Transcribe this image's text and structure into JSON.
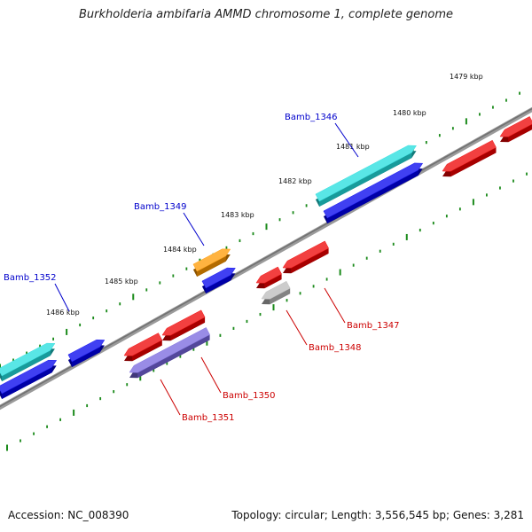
{
  "title": "Burkholderia ambifaria AMMD chromosome 1, complete genome",
  "footer": {
    "accession": "Accession: NC_008390",
    "summary": "Topology: circular; Length: 3,556,545 bp; Genes: 3,281"
  },
  "colors": {
    "backbone": "#8a8a8a",
    "tick": "#1a8a1a",
    "label_blue": "#0000cc",
    "label_red": "#cc0000",
    "cyan": "#22dddd",
    "blue": "#0000ee",
    "red": "#ee0000",
    "orange": "#ff9900",
    "gray": "#bbbbbb",
    "purple": "#7766dd"
  },
  "ruler": {
    "labels": [
      "1479 kbp",
      "1480 kbp",
      "1481 kbp",
      "1482 kbp",
      "1483 kbp",
      "1484 kbp",
      "1485 kbp",
      "1486 kbp"
    ]
  },
  "genes_labeled": {
    "forward": [
      "Bamb_1346",
      "Bamb_1349",
      "Bamb_1352"
    ],
    "reverse": [
      "Bamb_1347",
      "Bamb_1348",
      "Bamb_1350",
      "Bamb_1351"
    ]
  }
}
